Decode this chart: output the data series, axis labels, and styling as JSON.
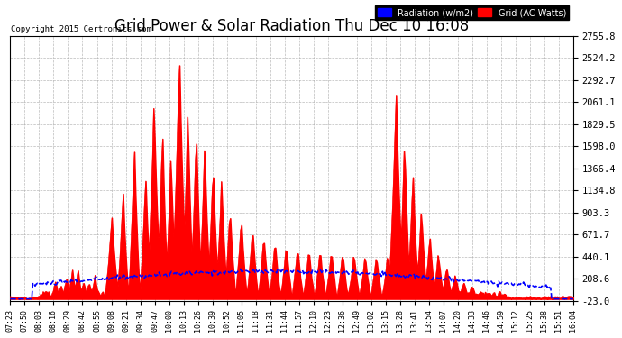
{
  "title": "Grid Power & Solar Radiation Thu Dec 10 16:08",
  "copyright": "Copyright 2015 Certronics.com",
  "yticks": [
    2755.8,
    2524.2,
    2292.7,
    2061.1,
    1829.5,
    1598.0,
    1366.4,
    1134.8,
    903.3,
    671.7,
    440.1,
    208.6,
    -23.0
  ],
  "ymin": -23.0,
  "ymax": 2755.8,
  "background_color": "#ffffff",
  "plot_background": "#ffffff",
  "title_fontsize": 12,
  "legend_radiation_label": "Radiation (w/m2)",
  "legend_grid_label": "Grid (AC Watts)",
  "radiation_color": "#0000ff",
  "grid_fill_color": "#ff0000",
  "x_labels": [
    "07:23",
    "07:50",
    "08:03",
    "08:16",
    "08:29",
    "08:42",
    "08:55",
    "09:08",
    "09:21",
    "09:34",
    "09:47",
    "10:00",
    "10:13",
    "10:26",
    "10:39",
    "10:52",
    "11:05",
    "11:18",
    "11:31",
    "11:44",
    "11:57",
    "12:10",
    "12:23",
    "12:36",
    "12:49",
    "13:02",
    "13:15",
    "13:28",
    "13:41",
    "13:54",
    "14:07",
    "14:20",
    "14:33",
    "14:46",
    "14:59",
    "15:12",
    "15:25",
    "15:38",
    "15:51",
    "16:04"
  ]
}
